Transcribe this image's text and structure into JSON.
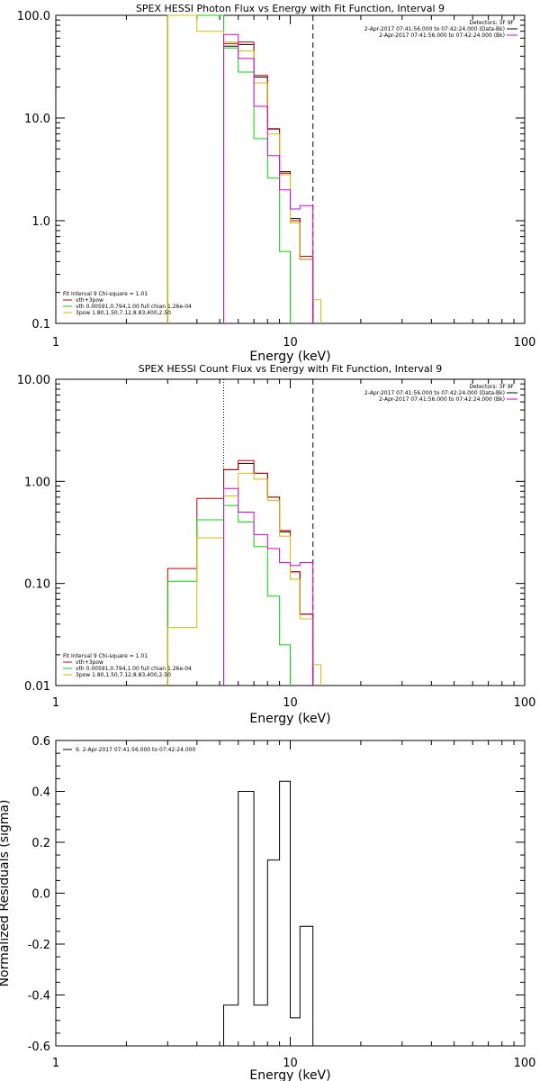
{
  "colors": {
    "background": "#ffffff",
    "axes": "#000000",
    "red": "#cc0000",
    "green": "#00dd00",
    "yellow": "#ddbb00",
    "magenta": "#dd00dd",
    "black": "#000000"
  },
  "chart_data": [
    {
      "id": "photon",
      "type": "line",
      "title": "SPEX HESSI Photon Flux vs Energy with Fit Function, Interval 9",
      "xlabel": "Energy (keV)",
      "ylabel": "",
      "xscale": "log",
      "yscale": "log",
      "xlim": [
        1,
        100
      ],
      "ylim": [
        0.1,
        100
      ],
      "xticks": [
        {
          "v": 1,
          "label": "1"
        },
        {
          "v": 10,
          "label": "10"
        },
        {
          "v": 100,
          "label": "100"
        }
      ],
      "yticks": [
        {
          "v": 0.1,
          "label": "0.1"
        },
        {
          "v": 1,
          "label": "1.0"
        },
        {
          "v": 10,
          "label": "10.0"
        },
        {
          "v": 100,
          "label": "100.0"
        }
      ],
      "vlines": [
        {
          "x": 5.2,
          "style": "dotted",
          "color": "#000000"
        },
        {
          "x": 5.2,
          "style": "solid",
          "color": "#dd00dd"
        },
        {
          "x": 12.5,
          "style": "dashed",
          "color": "#000000"
        }
      ],
      "legend_tr": {
        "title": "Detectors: 3F 9F",
        "entries": [
          {
            "text": "2-Apr-2017 07:41:56.000 to 07:42:24.000 (Data-Bk)",
            "color": "#000000"
          },
          {
            "text": "2-Apr-2017 07:41:56.000 to 07:42:24.000 (Bk)",
            "color": "#dd00dd"
          }
        ]
      },
      "legend_bl": {
        "title": "Fit Interval 9   Chi-square = 1.01",
        "entries": [
          {
            "text": "vth+3pow",
            "color": "#cc0000"
          },
          {
            "text": "vth 0.00591,0.794,1.00   full chian 1.26e-04",
            "color": "#00dd00"
          },
          {
            "text": "3pow 1.80,1.50,7.12,8.83,400,2.50",
            "color": "#ddbb00"
          }
        ]
      },
      "series": [
        {
          "color": "#000000",
          "edges": [
            5.2,
            6.0,
            7.0,
            8.0,
            9.0,
            10.0,
            11.0,
            12.5
          ],
          "values": [
            50,
            52,
            25,
            7.8,
            3.0,
            1.05,
            0.42
          ]
        },
        {
          "color": "#cc0000",
          "edges": [
            3.0,
            4.0,
            5.2,
            6.0,
            7.0,
            8.0,
            9.0,
            10.0,
            11.0,
            12.5
          ],
          "values": [
            100,
            100,
            53,
            55,
            26,
            7.9,
            2.9,
            1.0,
            0.45
          ]
        },
        {
          "color": "#00dd00",
          "edges": [
            3.0,
            4.0,
            5.2,
            6.0,
            7.0,
            8.0,
            9.0,
            10.0
          ],
          "values": [
            100,
            100,
            48,
            28,
            6.3,
            2.6,
            0.5
          ]
        },
        {
          "color": "#ddbb00",
          "edges": [
            3.0,
            4.0,
            5.2,
            6.0,
            7.0,
            8.0,
            9.0,
            10.0,
            11.0,
            12.5,
            13.5
          ],
          "values": [
            100,
            70,
            55,
            45,
            22,
            7.0,
            2.8,
            0.95,
            0.42,
            0.17
          ]
        },
        {
          "color": "#dd00dd",
          "edges": [
            5.2,
            6.0,
            7.0,
            8.0,
            9.0,
            10.0,
            11.0,
            12.5
          ],
          "values": [
            65,
            38,
            13,
            4.3,
            2.0,
            1.3,
            1.4
          ]
        }
      ]
    },
    {
      "id": "count",
      "type": "line",
      "title": "SPEX HESSI Count Flux vs Energy with Fit Function, Interval 9",
      "xlabel": "Energy (keV)",
      "ylabel": "",
      "xscale": "log",
      "yscale": "log",
      "xlim": [
        1,
        100
      ],
      "ylim": [
        0.01,
        10
      ],
      "xticks": [
        {
          "v": 1,
          "label": "1"
        },
        {
          "v": 10,
          "label": "10"
        },
        {
          "v": 100,
          "label": "100"
        }
      ],
      "yticks": [
        {
          "v": 0.01,
          "label": "0.01"
        },
        {
          "v": 0.1,
          "label": "0.10"
        },
        {
          "v": 1,
          "label": "1.00"
        },
        {
          "v": 10,
          "label": "10.00"
        }
      ],
      "vlines": [
        {
          "x": 5.2,
          "style": "dotted",
          "color": "#000000"
        },
        {
          "x": 5.2,
          "style": "solid",
          "color": "#dd00dd"
        },
        {
          "x": 12.5,
          "style": "dashed",
          "color": "#000000"
        }
      ],
      "legend_tr": {
        "title": "Detectors: 3F 9F",
        "entries": [
          {
            "text": "2-Apr-2017 07:41:56.000 to 07:42:24.000 (Data-Bk)",
            "color": "#000000"
          },
          {
            "text": "2-Apr-2017 07:41:56.000 to 07:42:24.000 (Bk)",
            "color": "#dd00dd"
          }
        ]
      },
      "legend_bl": {
        "title": "Fit Interval 9   Chi-square = 1.01",
        "entries": [
          {
            "text": "vth+3pow",
            "color": "#cc0000"
          },
          {
            "text": "vth 0.00591,0.794,1.00   full chian 1.26e-04",
            "color": "#00dd00"
          },
          {
            "text": "3pow 1.80,1.50,7.12,8.83,400,2.50",
            "color": "#ddbb00"
          }
        ]
      },
      "series": [
        {
          "color": "#000000",
          "edges": [
            5.2,
            6.0,
            7.0,
            8.0,
            9.0,
            10.0,
            11.0,
            12.5
          ],
          "values": [
            1.3,
            1.5,
            1.2,
            0.7,
            0.32,
            0.13,
            0.05
          ]
        },
        {
          "color": "#cc0000",
          "edges": [
            3.0,
            4.0,
            5.2,
            6.0,
            7.0,
            8.0,
            9.0,
            10.0,
            11.0,
            12.5
          ],
          "values": [
            0.14,
            0.68,
            1.3,
            1.6,
            1.2,
            0.7,
            0.33,
            0.13,
            0.05
          ]
        },
        {
          "color": "#00dd00",
          "edges": [
            3.0,
            4.0,
            5.2,
            6.0,
            7.0,
            8.0,
            9.0,
            10.0
          ],
          "values": [
            0.105,
            0.42,
            0.58,
            0.4,
            0.23,
            0.075,
            0.025
          ]
        },
        {
          "color": "#ddbb00",
          "edges": [
            3.0,
            4.0,
            5.2,
            6.0,
            7.0,
            8.0,
            9.0,
            10.0,
            11.0,
            12.5,
            13.5
          ],
          "values": [
            0.037,
            0.28,
            0.72,
            1.2,
            1.05,
            0.65,
            0.29,
            0.11,
            0.045,
            0.016
          ]
        },
        {
          "color": "#dd00dd",
          "edges": [
            5.2,
            6.0,
            7.0,
            8.0,
            9.0,
            10.0,
            11.0,
            12.5
          ],
          "values": [
            0.85,
            0.5,
            0.3,
            0.22,
            0.16,
            0.15,
            0.16
          ]
        }
      ]
    },
    {
      "id": "residuals",
      "type": "line",
      "title": "",
      "xlabel": "Energy (keV)",
      "ylabel": "Normalized Residuals (sigma)",
      "xscale": "log",
      "yscale": "linear",
      "xlim": [
        1,
        100
      ],
      "ylim": [
        -0.6,
        0.6
      ],
      "xticks": [
        {
          "v": 1,
          "label": "1"
        },
        {
          "v": 10,
          "label": "10"
        },
        {
          "v": 100,
          "label": "100"
        }
      ],
      "yticks": [
        {
          "v": -0.6,
          "label": "-0.6"
        },
        {
          "v": -0.4,
          "label": "-0.4"
        },
        {
          "v": -0.2,
          "label": "-0.2"
        },
        {
          "v": 0,
          "label": "0.0"
        },
        {
          "v": 0.2,
          "label": "0.2"
        },
        {
          "v": 0.4,
          "label": "0.4"
        },
        {
          "v": 0.6,
          "label": "0.6"
        }
      ],
      "vlines": [],
      "legend_tl": {
        "entries": [
          {
            "text": "9.  2-Apr-2017 07:41:56.000 to 07:42:24.000",
            "color": "#000000"
          }
        ]
      },
      "series": [
        {
          "color": "#000000",
          "edges": [
            5.2,
            6.0,
            7.0,
            8.0,
            9.0,
            10.0,
            11.0,
            12.5
          ],
          "values": [
            -0.44,
            0.4,
            -0.44,
            0.13,
            0.44,
            -0.49,
            -0.13
          ],
          "drop_to": -0.6
        }
      ]
    }
  ]
}
